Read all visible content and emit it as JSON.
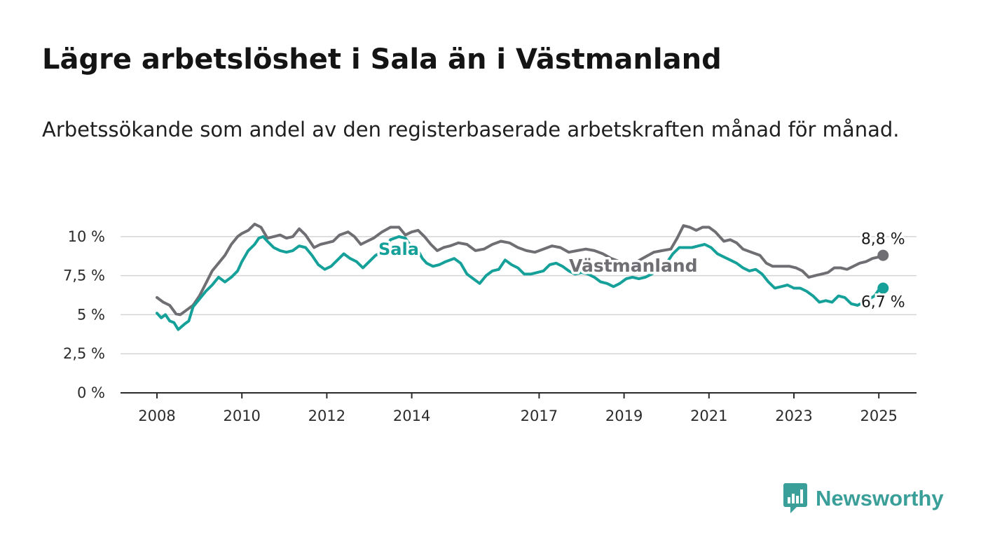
{
  "title": "Lägre arbetslöshet i Sala än i Västmanland",
  "subtitle": "Arbetssökande som andel av den registerbaserade arbetskraften månad för månad.",
  "brand": {
    "name": "Newsworthy",
    "icon": "bar-chart-speech-bubble-icon",
    "color": "#3a9e99"
  },
  "chart_data": {
    "type": "line",
    "y_ticks": [
      {
        "value": 0,
        "label": "0 %"
      },
      {
        "value": 2.5,
        "label": "2,5 %"
      },
      {
        "value": 5,
        "label": "5 %"
      },
      {
        "value": 7.5,
        "label": "7,5 %"
      },
      {
        "value": 10,
        "label": "10 %"
      }
    ],
    "x_ticks": [
      {
        "value": 2008,
        "label": "2008"
      },
      {
        "value": 2010,
        "label": "2010"
      },
      {
        "value": 2012,
        "label": "2012"
      },
      {
        "value": 2014,
        "label": "2014"
      },
      {
        "value": 2017,
        "label": "2017"
      },
      {
        "value": 2019,
        "label": "2019"
      },
      {
        "value": 2021,
        "label": "2021"
      },
      {
        "value": 2023,
        "label": "2023"
      },
      {
        "value": 2025,
        "label": "2025"
      }
    ],
    "xlim": [
      2007.2,
      2025.9
    ],
    "ylim": [
      0,
      10.8
    ],
    "grid": true,
    "series": [
      {
        "name": "Västmanland",
        "color": "#6e6e73",
        "end_label": "8,8 %",
        "points": [
          [
            2008.0,
            6.1
          ],
          [
            2008.15,
            5.8
          ],
          [
            2008.3,
            5.6
          ],
          [
            2008.45,
            5.05
          ],
          [
            2008.55,
            5.0
          ],
          [
            2008.7,
            5.3
          ],
          [
            2008.85,
            5.6
          ],
          [
            2009.0,
            6.2
          ],
          [
            2009.15,
            7.0
          ],
          [
            2009.3,
            7.8
          ],
          [
            2009.45,
            8.3
          ],
          [
            2009.6,
            8.8
          ],
          [
            2009.75,
            9.5
          ],
          [
            2009.9,
            10.0
          ],
          [
            2010.0,
            10.2
          ],
          [
            2010.15,
            10.4
          ],
          [
            2010.3,
            10.8
          ],
          [
            2010.45,
            10.6
          ],
          [
            2010.6,
            9.9
          ],
          [
            2010.75,
            10.0
          ],
          [
            2010.9,
            10.1
          ],
          [
            2011.05,
            9.9
          ],
          [
            2011.2,
            10.0
          ],
          [
            2011.35,
            10.5
          ],
          [
            2011.5,
            10.1
          ],
          [
            2011.7,
            9.3
          ],
          [
            2011.85,
            9.5
          ],
          [
            2012.0,
            9.6
          ],
          [
            2012.15,
            9.7
          ],
          [
            2012.3,
            10.1
          ],
          [
            2012.5,
            10.3
          ],
          [
            2012.65,
            10.0
          ],
          [
            2012.8,
            9.5
          ],
          [
            2012.95,
            9.7
          ],
          [
            2013.1,
            9.9
          ],
          [
            2013.3,
            10.3
          ],
          [
            2013.5,
            10.6
          ],
          [
            2013.7,
            10.6
          ],
          [
            2013.85,
            10.1
          ],
          [
            2014.0,
            10.3
          ],
          [
            2014.15,
            10.4
          ],
          [
            2014.3,
            10.0
          ],
          [
            2014.45,
            9.5
          ],
          [
            2014.6,
            9.1
          ],
          [
            2014.75,
            9.3
          ],
          [
            2014.9,
            9.4
          ],
          [
            2015.1,
            9.6
          ],
          [
            2015.3,
            9.5
          ],
          [
            2015.5,
            9.1
          ],
          [
            2015.7,
            9.2
          ],
          [
            2015.9,
            9.5
          ],
          [
            2016.1,
            9.7
          ],
          [
            2016.3,
            9.6
          ],
          [
            2016.5,
            9.3
          ],
          [
            2016.7,
            9.1
          ],
          [
            2016.9,
            9.0
          ],
          [
            2017.1,
            9.2
          ],
          [
            2017.3,
            9.4
          ],
          [
            2017.5,
            9.3
          ],
          [
            2017.7,
            9.0
          ],
          [
            2017.9,
            9.1
          ],
          [
            2018.1,
            9.2
          ],
          [
            2018.3,
            9.1
          ],
          [
            2018.5,
            8.9
          ],
          [
            2018.7,
            8.6
          ],
          [
            2018.9,
            8.4
          ],
          [
            2019.1,
            8.3
          ],
          [
            2019.3,
            8.4
          ],
          [
            2019.5,
            8.7
          ],
          [
            2019.7,
            9.0
          ],
          [
            2019.9,
            9.1
          ],
          [
            2020.1,
            9.2
          ],
          [
            2020.25,
            9.9
          ],
          [
            2020.4,
            10.7
          ],
          [
            2020.55,
            10.6
          ],
          [
            2020.7,
            10.4
          ],
          [
            2020.85,
            10.6
          ],
          [
            2021.0,
            10.6
          ],
          [
            2021.15,
            10.3
          ],
          [
            2021.35,
            9.7
          ],
          [
            2021.5,
            9.8
          ],
          [
            2021.65,
            9.6
          ],
          [
            2021.8,
            9.2
          ],
          [
            2022.0,
            9.0
          ],
          [
            2022.2,
            8.8
          ],
          [
            2022.35,
            8.3
          ],
          [
            2022.5,
            8.1
          ],
          [
            2022.7,
            8.1
          ],
          [
            2022.9,
            8.1
          ],
          [
            2023.05,
            8.0
          ],
          [
            2023.2,
            7.8
          ],
          [
            2023.35,
            7.4
          ],
          [
            2023.5,
            7.5
          ],
          [
            2023.65,
            7.6
          ],
          [
            2023.8,
            7.7
          ],
          [
            2023.95,
            8.0
          ],
          [
            2024.1,
            8.0
          ],
          [
            2024.25,
            7.9
          ],
          [
            2024.4,
            8.1
          ],
          [
            2024.55,
            8.3
          ],
          [
            2024.7,
            8.4
          ],
          [
            2024.85,
            8.6
          ],
          [
            2025.0,
            8.7
          ],
          [
            2025.1,
            8.8
          ]
        ]
      },
      {
        "name": "Sala",
        "color": "#15a199",
        "end_label": "6,7 %",
        "points": [
          [
            2008.0,
            5.1
          ],
          [
            2008.1,
            4.8
          ],
          [
            2008.2,
            5.0
          ],
          [
            2008.3,
            4.6
          ],
          [
            2008.4,
            4.5
          ],
          [
            2008.5,
            4.05
          ],
          [
            2008.65,
            4.4
          ],
          [
            2008.75,
            4.6
          ],
          [
            2008.85,
            5.5
          ],
          [
            2009.0,
            6.0
          ],
          [
            2009.15,
            6.5
          ],
          [
            2009.3,
            6.9
          ],
          [
            2009.45,
            7.4
          ],
          [
            2009.6,
            7.1
          ],
          [
            2009.75,
            7.4
          ],
          [
            2009.9,
            7.8
          ],
          [
            2010.0,
            8.4
          ],
          [
            2010.15,
            9.1
          ],
          [
            2010.3,
            9.5
          ],
          [
            2010.4,
            9.9
          ],
          [
            2010.5,
            10.0
          ],
          [
            2010.6,
            9.7
          ],
          [
            2010.75,
            9.3
          ],
          [
            2010.9,
            9.1
          ],
          [
            2011.05,
            9.0
          ],
          [
            2011.2,
            9.1
          ],
          [
            2011.35,
            9.4
          ],
          [
            2011.5,
            9.3
          ],
          [
            2011.65,
            8.8
          ],
          [
            2011.8,
            8.2
          ],
          [
            2011.95,
            7.9
          ],
          [
            2012.1,
            8.1
          ],
          [
            2012.25,
            8.5
          ],
          [
            2012.4,
            8.9
          ],
          [
            2012.55,
            8.6
          ],
          [
            2012.7,
            8.4
          ],
          [
            2012.85,
            8.0
          ],
          [
            2013.0,
            8.4
          ],
          [
            2013.15,
            8.8
          ],
          [
            2013.35,
            9.1
          ],
          [
            2013.5,
            9.8
          ],
          [
            2013.7,
            10.0
          ],
          [
            2013.85,
            9.9
          ],
          [
            2014.0,
            9.3
          ],
          [
            2014.15,
            9.1
          ],
          [
            2014.25,
            8.6
          ],
          [
            2014.35,
            8.3
          ],
          [
            2014.5,
            8.1
          ],
          [
            2014.65,
            8.2
          ],
          [
            2014.8,
            8.4
          ],
          [
            2015.0,
            8.6
          ],
          [
            2015.15,
            8.3
          ],
          [
            2015.3,
            7.6
          ],
          [
            2015.45,
            7.3
          ],
          [
            2015.6,
            7.0
          ],
          [
            2015.75,
            7.5
          ],
          [
            2015.9,
            7.8
          ],
          [
            2016.05,
            7.9
          ],
          [
            2016.2,
            8.5
          ],
          [
            2016.35,
            8.2
          ],
          [
            2016.5,
            8.0
          ],
          [
            2016.65,
            7.6
          ],
          [
            2016.8,
            7.6
          ],
          [
            2016.95,
            7.7
          ],
          [
            2017.1,
            7.8
          ],
          [
            2017.25,
            8.2
          ],
          [
            2017.4,
            8.3
          ],
          [
            2017.55,
            8.1
          ],
          [
            2017.7,
            7.8
          ],
          [
            2017.85,
            7.6
          ],
          [
            2018.0,
            7.7
          ],
          [
            2018.15,
            7.6
          ],
          [
            2018.3,
            7.4
          ],
          [
            2018.45,
            7.1
          ],
          [
            2018.6,
            7.0
          ],
          [
            2018.75,
            6.8
          ],
          [
            2018.9,
            7.0
          ],
          [
            2019.05,
            7.3
          ],
          [
            2019.2,
            7.4
          ],
          [
            2019.35,
            7.3
          ],
          [
            2019.5,
            7.4
          ],
          [
            2019.65,
            7.6
          ],
          [
            2019.8,
            7.9
          ],
          [
            2020.0,
            8.3
          ],
          [
            2020.15,
            8.9
          ],
          [
            2020.3,
            9.3
          ],
          [
            2020.45,
            9.3
          ],
          [
            2020.6,
            9.3
          ],
          [
            2020.75,
            9.4
          ],
          [
            2020.9,
            9.5
          ],
          [
            2021.05,
            9.3
          ],
          [
            2021.2,
            8.9
          ],
          [
            2021.35,
            8.7
          ],
          [
            2021.5,
            8.5
          ],
          [
            2021.65,
            8.3
          ],
          [
            2021.8,
            8.0
          ],
          [
            2021.95,
            7.8
          ],
          [
            2022.1,
            7.9
          ],
          [
            2022.25,
            7.6
          ],
          [
            2022.4,
            7.1
          ],
          [
            2022.55,
            6.7
          ],
          [
            2022.7,
            6.8
          ],
          [
            2022.85,
            6.9
          ],
          [
            2023.0,
            6.7
          ],
          [
            2023.15,
            6.7
          ],
          [
            2023.3,
            6.5
          ],
          [
            2023.45,
            6.2
          ],
          [
            2023.6,
            5.8
          ],
          [
            2023.75,
            5.9
          ],
          [
            2023.9,
            5.8
          ],
          [
            2024.05,
            6.2
          ],
          [
            2024.2,
            6.1
          ],
          [
            2024.35,
            5.7
          ],
          [
            2024.5,
            5.6
          ],
          [
            2024.9,
            6.2
          ],
          [
            2025.0,
            6.6
          ],
          [
            2025.1,
            6.7
          ]
        ]
      }
    ]
  }
}
